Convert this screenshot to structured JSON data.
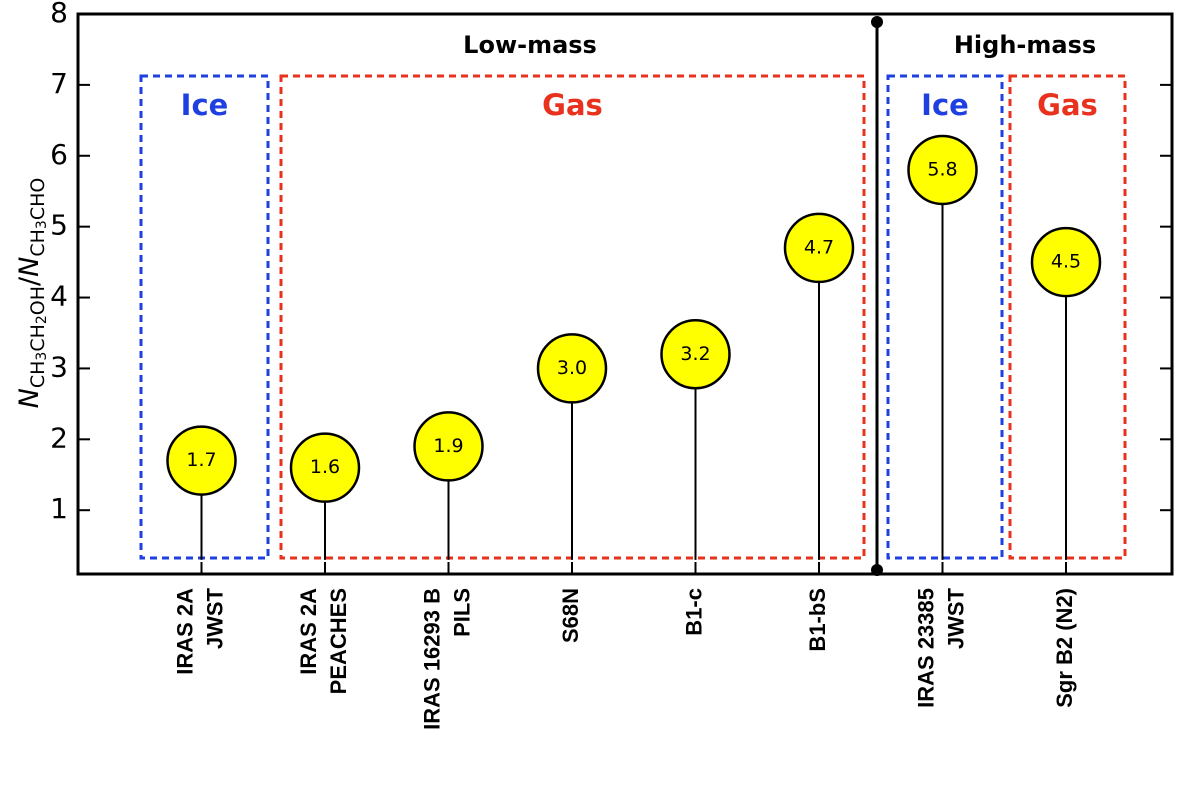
{
  "chart_data": {
    "type": "lollipop",
    "y_label": [
      "N",
      "CH",
      "3",
      "CH",
      "2",
      "OH",
      "/",
      "N",
      "CH",
      "3",
      "CHO"
    ],
    "categories": [
      [
        "IRAS 2A",
        "JWST"
      ],
      [
        "IRAS 2A",
        "PEACHES"
      ],
      [
        "IRAS 16293 B",
        "PILS"
      ],
      [
        "S68N"
      ],
      [
        "B1-c"
      ],
      [
        "B1-bS"
      ],
      [
        "IRAS 23385",
        "JWST"
      ],
      [
        "Sgr B2 (N2)"
      ]
    ],
    "values": [
      1.7,
      1.6,
      1.9,
      3.0,
      3.2,
      4.7,
      5.8,
      4.5
    ],
    "value_labels": [
      "1.7",
      "1.6",
      "1.9",
      "3.0",
      "3.2",
      "4.7",
      "5.8",
      "4.5"
    ],
    "color": "#ffff00",
    "ylim": [
      0.1,
      8
    ],
    "yticks": [
      1,
      2,
      3,
      4,
      5,
      6,
      7,
      8
    ],
    "mass_groups": [
      "Low-mass",
      "High-mass"
    ],
    "phase_boxes": [
      {
        "label": "Ice",
        "color": "#1f3fe0"
      },
      {
        "label": "Gas",
        "color": "#e8321e"
      },
      {
        "label": "Ice",
        "color": "#1f3fe0"
      },
      {
        "label": "Gas",
        "color": "#e8321e"
      }
    ]
  }
}
